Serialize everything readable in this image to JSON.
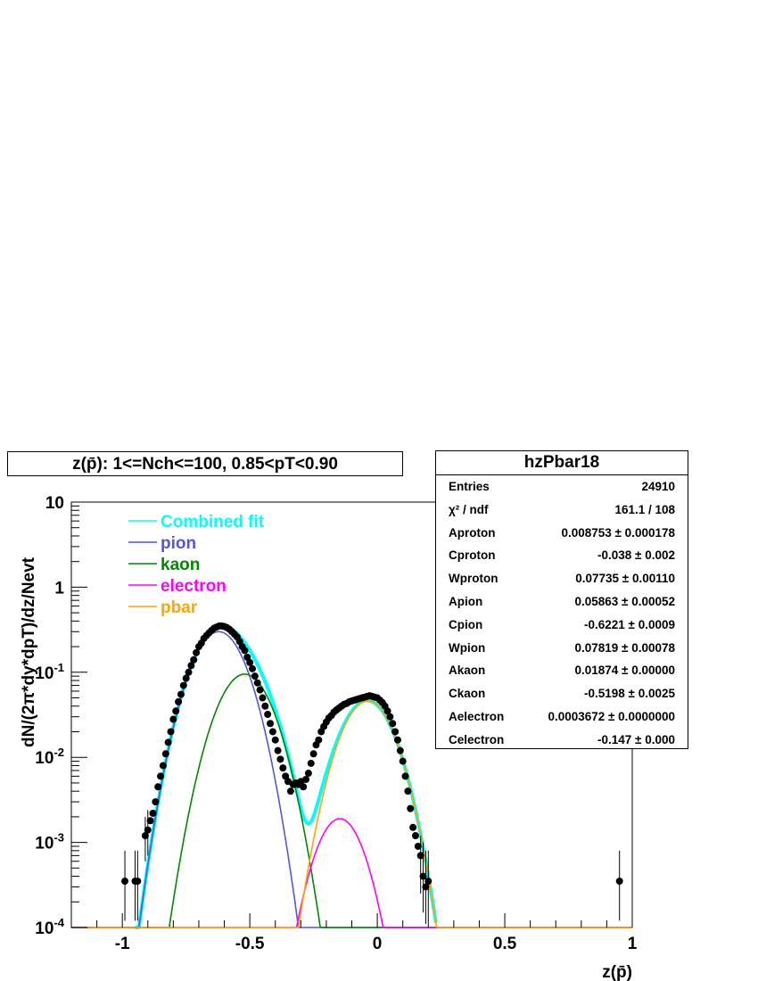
{
  "title": "z(p̄): 1<=Nch<=100, 0.85<pT<0.90",
  "stats": {
    "name": "hzPbar18",
    "rows": [
      {
        "label": "Entries",
        "value": "24910"
      },
      {
        "label": "χ² / ndf",
        "value": "161.1 / 108"
      },
      {
        "label": "Aproton",
        "value": "0.008753 ± 0.000178"
      },
      {
        "label": "Cproton",
        "value": "-0.038 ± 0.002"
      },
      {
        "label": "Wproton",
        "value": "0.07735 ± 0.00110"
      },
      {
        "label": "Apion",
        "value": "0.05863 ± 0.00052"
      },
      {
        "label": "Cpion",
        "value": "-0.6221 ± 0.0009"
      },
      {
        "label": "Wpion",
        "value": "0.07819 ± 0.00078"
      },
      {
        "label": "Akaon",
        "value": "0.01874 ± 0.00000"
      },
      {
        "label": "Ckaon",
        "value": "-0.5198 ± 0.0025"
      },
      {
        "label": "Aelectron",
        "value": "0.0003672 ± 0.0000000"
      },
      {
        "label": "Celectron",
        "value": "-0.147 ± 0.000"
      }
    ]
  },
  "chart_data": {
    "type": "scatter",
    "title": "z(p̄): 1<=Nch<=100, 0.85<pT<0.90",
    "xlabel": "z(p̄)",
    "ylabel": "dN/(2π*dy*dpT)/dz/Nevt",
    "xlim": [
      -1.2,
      1.0
    ],
    "ylim": [
      0.0001,
      10
    ],
    "yscale": "log",
    "x_ticks": [
      "-1",
      "-0.5",
      "0",
      "0.5",
      "1"
    ],
    "x_tick_values": [
      -1,
      -0.5,
      0,
      0.5,
      1
    ],
    "y_ticks": [
      "10",
      "1",
      "10-1",
      "10-2",
      "10-3",
      "10-4"
    ],
    "y_tick_values": [
      10,
      1,
      0.1,
      0.01,
      0.001,
      0.0001
    ],
    "legend": {
      "placement": "top-left",
      "entries": [
        {
          "label": "Combined fit",
          "color": "#00ffff"
        },
        {
          "label": "pion",
          "color": "#5555dd"
        },
        {
          "label": "kaon",
          "color": "#008800"
        },
        {
          "label": "electron",
          "color": "#ff00ff"
        },
        {
          "label": "pbar",
          "color": "#ffa500"
        }
      ]
    },
    "fit_params": {
      "Aproton": 0.008753,
      "Cproton": -0.038,
      "Wproton": 0.07735,
      "Apion": 0.05863,
      "Cpion": -0.6221,
      "Wpion": 0.07819,
      "Akaon": 0.01874,
      "Ckaon": -0.5198,
      "Aelectron": 0.0003672,
      "Celectron": -0.147
    },
    "component_curves": [
      {
        "name": "pion",
        "color": "#5555dd",
        "peak_x": -0.6221,
        "peak_y": 0.3,
        "sigma": 0.07819
      },
      {
        "name": "kaon",
        "color": "#008800",
        "peak_x": -0.5198,
        "peak_y": 0.095,
        "sigma": 0.08
      },
      {
        "name": "electron",
        "color": "#ff00ff",
        "peak_x": -0.147,
        "peak_y": 0.0019,
        "sigma": 0.07
      },
      {
        "name": "pbar",
        "color": "#ffa500",
        "peak_x": -0.038,
        "peak_y": 0.046,
        "sigma": 0.07735
      }
    ],
    "points": [
      {
        "x": -0.99,
        "y": 0.00035
      },
      {
        "x": -0.95,
        "y": 0.00035
      },
      {
        "x": -0.94,
        "y": 0.00035
      },
      {
        "x": -0.91,
        "y": 0.0012
      },
      {
        "x": -0.9,
        "y": 0.0014
      },
      {
        "x": -0.89,
        "y": 0.0018
      },
      {
        "x": -0.88,
        "y": 0.0022
      },
      {
        "x": -0.87,
        "y": 0.003
      },
      {
        "x": -0.86,
        "y": 0.0045
      },
      {
        "x": -0.85,
        "y": 0.006
      },
      {
        "x": -0.84,
        "y": 0.008
      },
      {
        "x": -0.83,
        "y": 0.011
      },
      {
        "x": -0.82,
        "y": 0.015
      },
      {
        "x": -0.81,
        "y": 0.02
      },
      {
        "x": -0.8,
        "y": 0.028
      },
      {
        "x": -0.79,
        "y": 0.035
      },
      {
        "x": -0.78,
        "y": 0.045
      },
      {
        "x": -0.77,
        "y": 0.055
      },
      {
        "x": -0.76,
        "y": 0.07
      },
      {
        "x": -0.75,
        "y": 0.085
      },
      {
        "x": -0.74,
        "y": 0.1
      },
      {
        "x": -0.73,
        "y": 0.12
      },
      {
        "x": -0.72,
        "y": 0.14
      },
      {
        "x": -0.71,
        "y": 0.17
      },
      {
        "x": -0.7,
        "y": 0.2
      },
      {
        "x": -0.69,
        "y": 0.22
      },
      {
        "x": -0.68,
        "y": 0.25
      },
      {
        "x": -0.67,
        "y": 0.27
      },
      {
        "x": -0.66,
        "y": 0.29
      },
      {
        "x": -0.65,
        "y": 0.31
      },
      {
        "x": -0.64,
        "y": 0.33
      },
      {
        "x": -0.63,
        "y": 0.34
      },
      {
        "x": -0.62,
        "y": 0.35
      },
      {
        "x": -0.61,
        "y": 0.35
      },
      {
        "x": -0.6,
        "y": 0.345
      },
      {
        "x": -0.59,
        "y": 0.335
      },
      {
        "x": -0.58,
        "y": 0.32
      },
      {
        "x": -0.57,
        "y": 0.3
      },
      {
        "x": -0.56,
        "y": 0.28
      },
      {
        "x": -0.55,
        "y": 0.26
      },
      {
        "x": -0.54,
        "y": 0.23
      },
      {
        "x": -0.53,
        "y": 0.2
      },
      {
        "x": -0.52,
        "y": 0.18
      },
      {
        "x": -0.51,
        "y": 0.15
      },
      {
        "x": -0.5,
        "y": 0.13
      },
      {
        "x": -0.49,
        "y": 0.11
      },
      {
        "x": -0.48,
        "y": 0.09
      },
      {
        "x": -0.47,
        "y": 0.075
      },
      {
        "x": -0.46,
        "y": 0.062
      },
      {
        "x": -0.45,
        "y": 0.05
      },
      {
        "x": -0.44,
        "y": 0.04
      },
      {
        "x": -0.43,
        "y": 0.032
      },
      {
        "x": -0.42,
        "y": 0.025
      },
      {
        "x": -0.41,
        "y": 0.02
      },
      {
        "x": -0.4,
        "y": 0.016
      },
      {
        "x": -0.39,
        "y": 0.012
      },
      {
        "x": -0.38,
        "y": 0.0095
      },
      {
        "x": -0.37,
        "y": 0.0075
      },
      {
        "x": -0.36,
        "y": 0.006
      },
      {
        "x": -0.35,
        "y": 0.0052
      },
      {
        "x": -0.34,
        "y": 0.004
      },
      {
        "x": -0.33,
        "y": 0.0048
      },
      {
        "x": -0.32,
        "y": 0.005
      },
      {
        "x": -0.31,
        "y": 0.0048
      },
      {
        "x": -0.3,
        "y": 0.0052
      },
      {
        "x": -0.29,
        "y": 0.0045
      },
      {
        "x": -0.28,
        "y": 0.0055
      },
      {
        "x": -0.27,
        "y": 0.0065
      },
      {
        "x": -0.26,
        "y": 0.0085
      },
      {
        "x": -0.25,
        "y": 0.011
      },
      {
        "x": -0.24,
        "y": 0.014
      },
      {
        "x": -0.23,
        "y": 0.016
      },
      {
        "x": -0.22,
        "y": 0.02
      },
      {
        "x": -0.21,
        "y": 0.023
      },
      {
        "x": -0.2,
        "y": 0.026
      },
      {
        "x": -0.19,
        "y": 0.029
      },
      {
        "x": -0.18,
        "y": 0.031
      },
      {
        "x": -0.17,
        "y": 0.034
      },
      {
        "x": -0.16,
        "y": 0.036
      },
      {
        "x": -0.15,
        "y": 0.038
      },
      {
        "x": -0.14,
        "y": 0.04
      },
      {
        "x": -0.13,
        "y": 0.042
      },
      {
        "x": -0.12,
        "y": 0.043
      },
      {
        "x": -0.11,
        "y": 0.045
      },
      {
        "x": -0.1,
        "y": 0.046
      },
      {
        "x": -0.09,
        "y": 0.047
      },
      {
        "x": -0.08,
        "y": 0.048
      },
      {
        "x": -0.07,
        "y": 0.049
      },
      {
        "x": -0.06,
        "y": 0.05
      },
      {
        "x": -0.05,
        "y": 0.051
      },
      {
        "x": -0.04,
        "y": 0.052
      },
      {
        "x": -0.03,
        "y": 0.053
      },
      {
        "x": -0.02,
        "y": 0.052
      },
      {
        "x": -0.01,
        "y": 0.051
      },
      {
        "x": 0.0,
        "y": 0.05
      },
      {
        "x": 0.01,
        "y": 0.047
      },
      {
        "x": 0.02,
        "y": 0.044
      },
      {
        "x": 0.03,
        "y": 0.04
      },
      {
        "x": 0.04,
        "y": 0.035
      },
      {
        "x": 0.05,
        "y": 0.03
      },
      {
        "x": 0.06,
        "y": 0.025
      },
      {
        "x": 0.07,
        "y": 0.02
      },
      {
        "x": 0.08,
        "y": 0.016
      },
      {
        "x": 0.09,
        "y": 0.012
      },
      {
        "x": 0.1,
        "y": 0.009
      },
      {
        "x": 0.11,
        "y": 0.006
      },
      {
        "x": 0.12,
        "y": 0.004
      },
      {
        "x": 0.13,
        "y": 0.0025
      },
      {
        "x": 0.14,
        "y": 0.0015
      },
      {
        "x": 0.15,
        "y": 0.0012
      },
      {
        "x": 0.16,
        "y": 0.0009
      },
      {
        "x": 0.17,
        "y": 0.0007
      },
      {
        "x": 0.18,
        "y": 0.0004
      },
      {
        "x": 0.19,
        "y": 0.0003
      },
      {
        "x": 0.2,
        "y": 0.00035
      },
      {
        "x": 0.95,
        "y": 0.00035
      }
    ],
    "error_y": [
      {
        "x": -0.99,
        "lo": 0.00012,
        "hi": 0.0008
      },
      {
        "x": -0.95,
        "lo": 0.00012,
        "hi": 0.0008
      },
      {
        "x": -0.94,
        "lo": 0.00012,
        "hi": 0.0008
      },
      {
        "x": -0.91,
        "lo": 0.0006,
        "hi": 0.002
      },
      {
        "x": -0.9,
        "lo": 0.0007,
        "hi": 0.0024
      },
      {
        "x": 0.17,
        "lo": 0.00025,
        "hi": 0.0012
      },
      {
        "x": 0.18,
        "lo": 0.00015,
        "hi": 0.001
      },
      {
        "x": 0.19,
        "lo": 0.00011,
        "hi": 0.0008
      },
      {
        "x": 0.2,
        "lo": 0.00012,
        "hi": 0.0008
      },
      {
        "x": 0.95,
        "lo": 0.00012,
        "hi": 0.0008
      }
    ]
  }
}
